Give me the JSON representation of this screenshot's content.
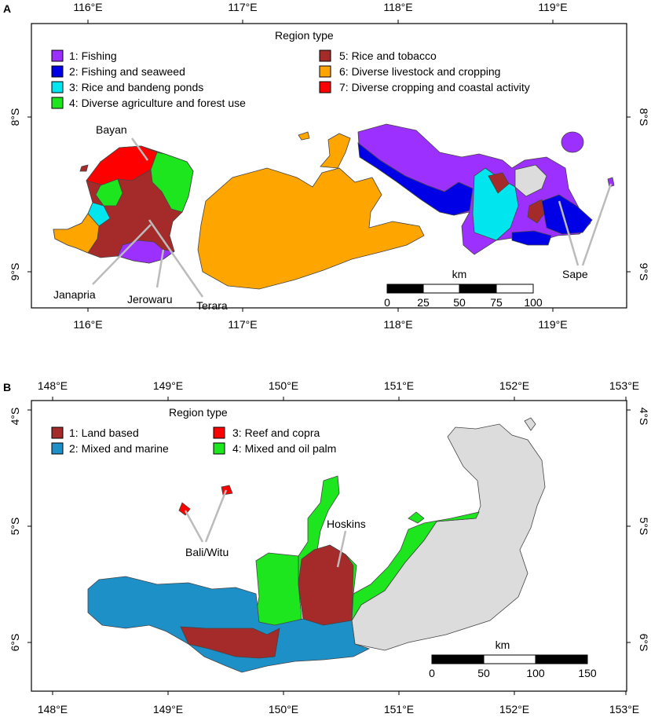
{
  "panel_a": {
    "label": "A",
    "top_ticks": [
      "116°E",
      "117°E",
      "118°E",
      "119°E"
    ],
    "bottom_ticks": [
      "116°E",
      "117°E",
      "118°E",
      "119°E"
    ],
    "left_ticks": [
      "8°S",
      "9°S"
    ],
    "right_ticks": [
      "8°S",
      "9°S"
    ],
    "legend_title": "Region type",
    "legend": [
      {
        "label": "1: Fishing",
        "color": "#9b30ff"
      },
      {
        "label": "2: Fishing and seaweed",
        "color": "#0000e6"
      },
      {
        "label": "3: Rice and bandeng ponds",
        "color": "#00e5ee"
      },
      {
        "label": "4: Diverse agriculture and forest use",
        "color": "#1ee61e"
      },
      {
        "label": "5: Rice and tobacco",
        "color": "#a52a2a"
      },
      {
        "label": "6: Diverse livestock and cropping",
        "color": "#ffa500"
      },
      {
        "label": "7: Diverse cropping and coastal activity",
        "color": "#ff0000"
      }
    ],
    "places": [
      "Bayan",
      "Janapria",
      "Jerowaru",
      "Terara",
      "Sape"
    ],
    "scale": {
      "title": "km",
      "ticks": [
        "0",
        "25",
        "50",
        "75",
        "100"
      ]
    }
  },
  "panel_b": {
    "label": "B",
    "top_ticks": [
      "148°E",
      "149°E",
      "150°E",
      "151°E",
      "152°E",
      "153°E"
    ],
    "bottom_ticks": [
      "148°E",
      "149°E",
      "150°E",
      "151°E",
      "152°E",
      "153°E"
    ],
    "left_ticks": [
      "4°S",
      "5°S",
      "6°S"
    ],
    "right_ticks": [
      "4°S",
      "5°S",
      "6°S"
    ],
    "legend_title": "Region type",
    "legend": [
      {
        "label": "1: Land based",
        "color": "#a52a2a"
      },
      {
        "label": "2: Mixed and marine",
        "color": "#1e90c8"
      },
      {
        "label": "3: Reef and copra",
        "color": "#ff0000"
      },
      {
        "label": "4: Mixed and oil palm",
        "color": "#1ee61e"
      }
    ],
    "places": [
      "Bali/Witu",
      "Hoskins"
    ],
    "scale": {
      "title": "km",
      "ticks": [
        "0",
        "50",
        "100",
        "150"
      ]
    },
    "unclassified_color": "#dcdcdc"
  }
}
